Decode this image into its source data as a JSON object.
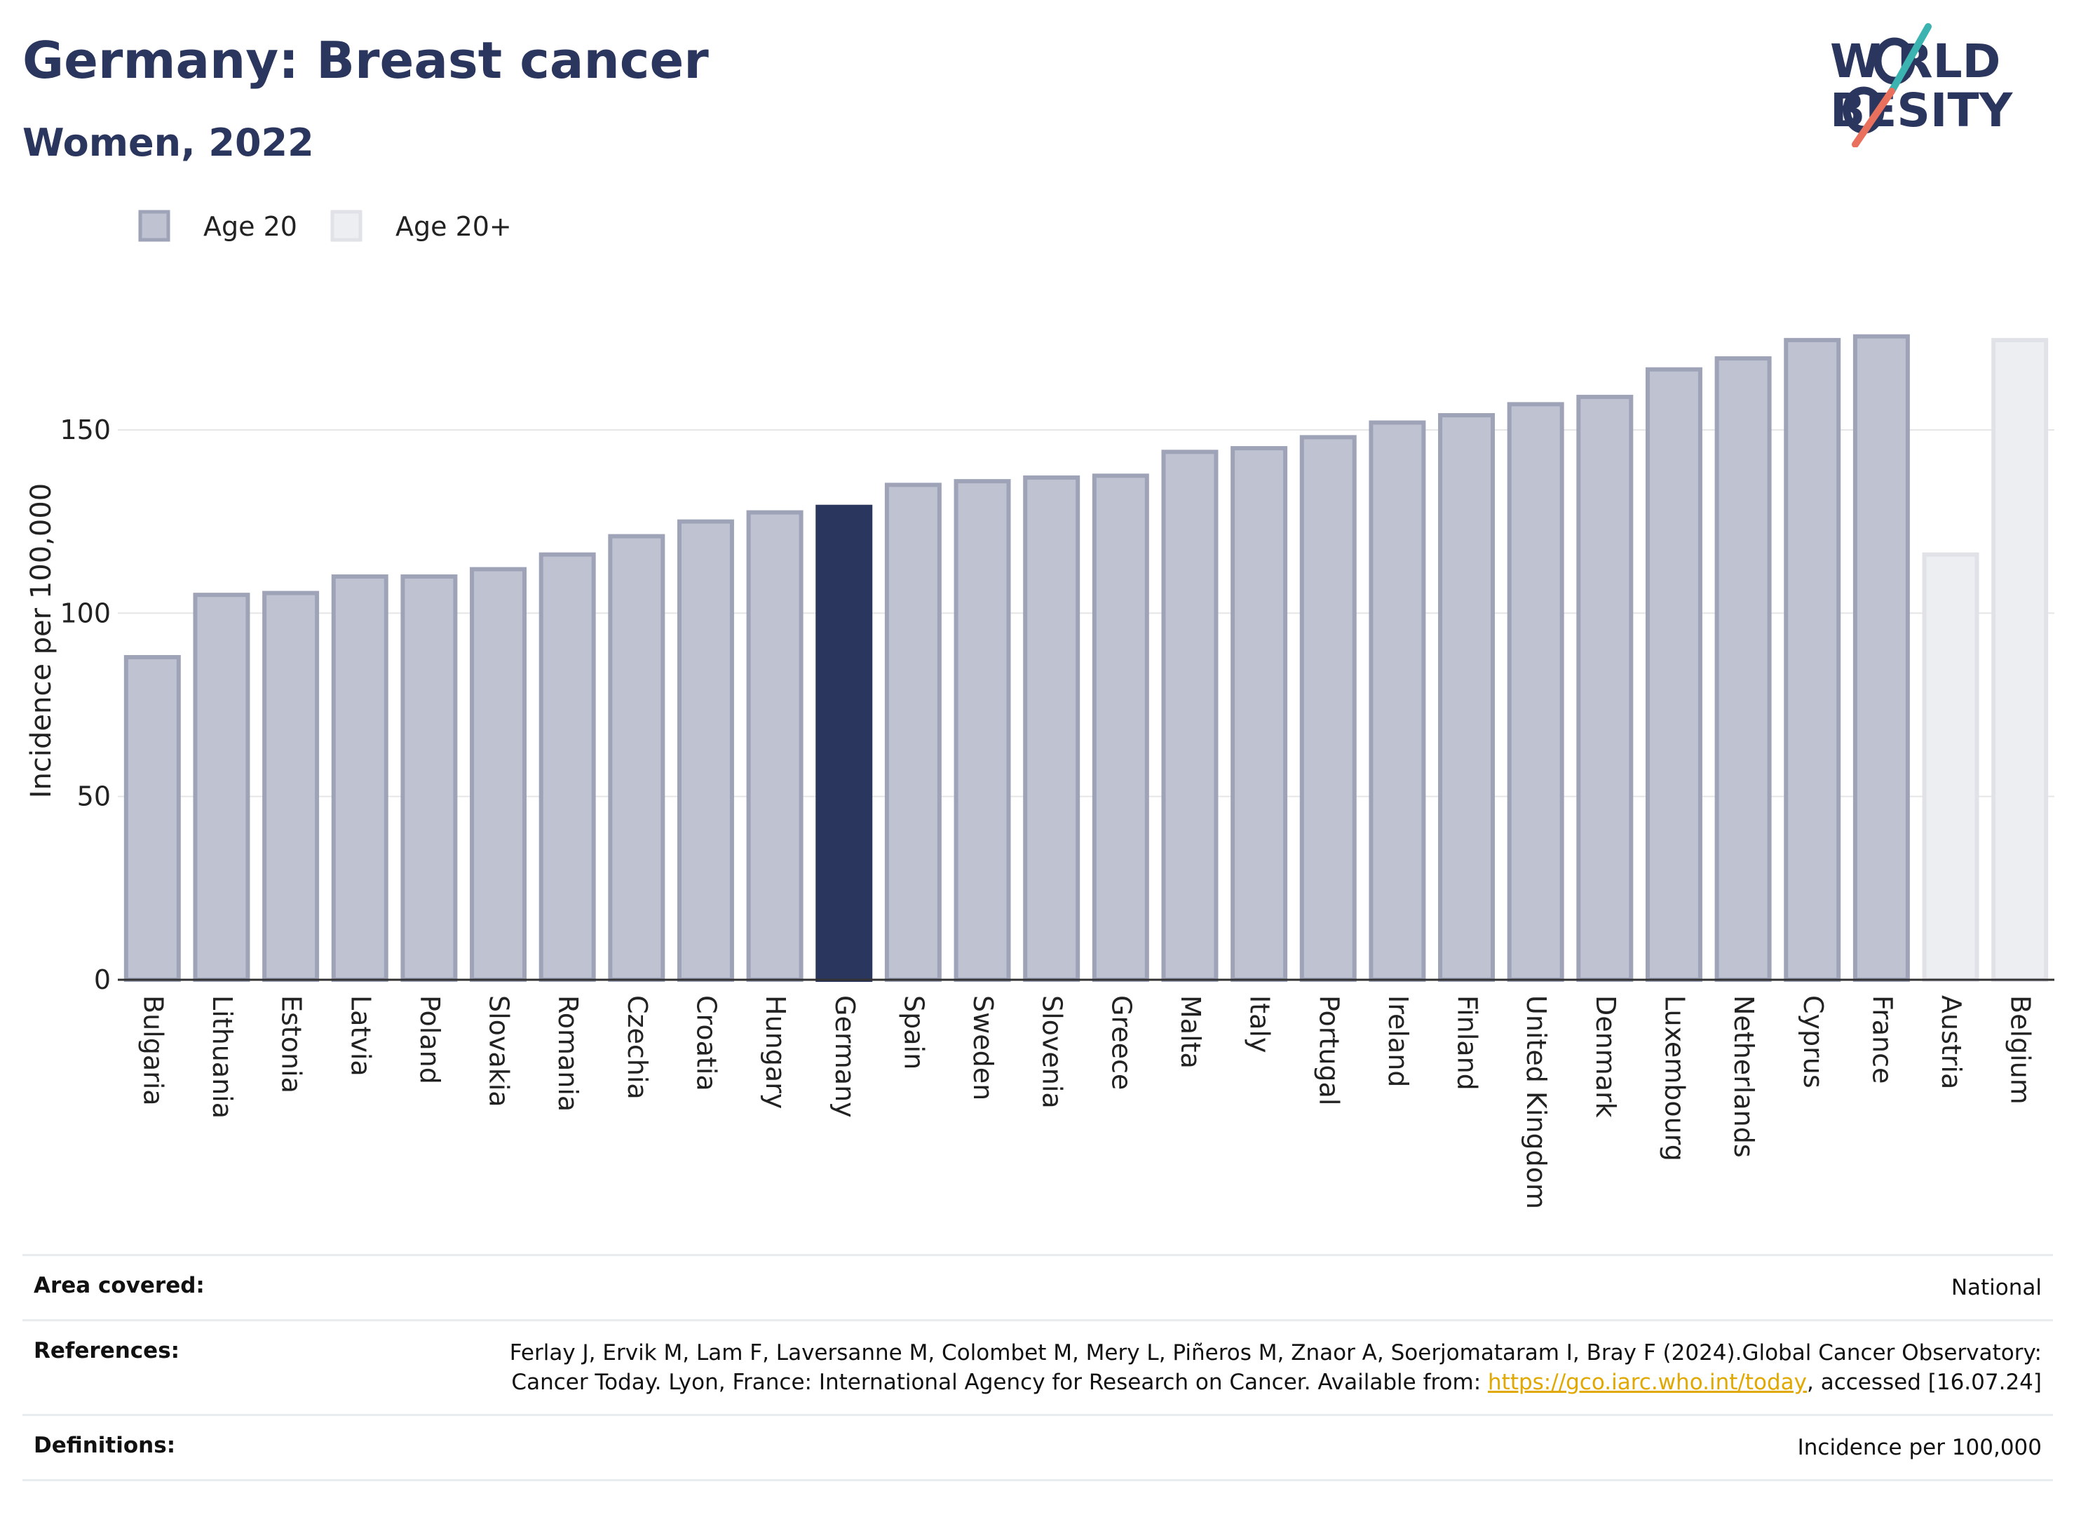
{
  "header": {
    "title": "Germany: Breast cancer",
    "subtitle": "Women, 2022"
  },
  "logo": {
    "line1": "W   RLD",
    "line2": "  BESITY",
    "accent_teal": "#3bb3b0",
    "accent_coral": "#e8705c",
    "text_color": "#2b365e"
  },
  "legend": {
    "items": [
      {
        "label": "Age 20",
        "color": "#bfc2d0",
        "stroke": "#9ea3b8"
      },
      {
        "label": "Age 20+",
        "color": "#eceef2",
        "stroke": "#e0e2e8"
      }
    ]
  },
  "chart_data": {
    "type": "bar",
    "ylabel": "Incidence per 100,000",
    "ylim": [
      0,
      185
    ],
    "yticks": [
      0,
      50,
      100,
      150
    ],
    "grid": true,
    "legend_position": "top-left",
    "highlight": "Germany",
    "highlight_color": "#2b365e",
    "categories": [
      "Bulgaria",
      "Lithuania",
      "Estonia",
      "Latvia",
      "Poland",
      "Slovakia",
      "Romania",
      "Czechia",
      "Croatia",
      "Hungary",
      "Germany",
      "Spain",
      "Sweden",
      "Slovenia",
      "Greece",
      "Malta",
      "Italy",
      "Portugal",
      "Ireland",
      "Finland",
      "United Kingdom",
      "Denmark",
      "Luxembourg",
      "Netherlands",
      "Cyprus",
      "France",
      "Austria",
      "Belgium"
    ],
    "values": [
      88,
      105,
      105.5,
      110,
      110,
      112,
      116,
      121,
      125,
      127.5,
      129,
      135,
      136,
      137,
      137.5,
      144,
      145,
      148,
      152,
      154,
      157,
      159,
      166.5,
      169.5,
      174.5,
      175.5,
      116,
      174.5
    ],
    "series_index": [
      0,
      0,
      0,
      0,
      0,
      0,
      0,
      0,
      0,
      0,
      0,
      0,
      0,
      0,
      0,
      0,
      0,
      0,
      0,
      0,
      0,
      0,
      0,
      0,
      0,
      0,
      1,
      1
    ]
  },
  "info": {
    "area_label": "Area covered:",
    "area_value": "National",
    "references_label": "References:",
    "references_text": "Ferlay J, Ervik M, Lam F, Laversanne M, Colombet M, Mery L, Piñeros M, Znaor A, Soerjomataram I, Bray F (2024).Global Cancer Observatory: Cancer Today. Lyon, France: International Agency for Research on Cancer. Available from: ",
    "references_link": "https://gco.iarc.who.int/today",
    "references_suffix": ", accessed [16.07.24]",
    "definitions_label": "Definitions:",
    "definitions_value": "Incidence per 100,000"
  }
}
